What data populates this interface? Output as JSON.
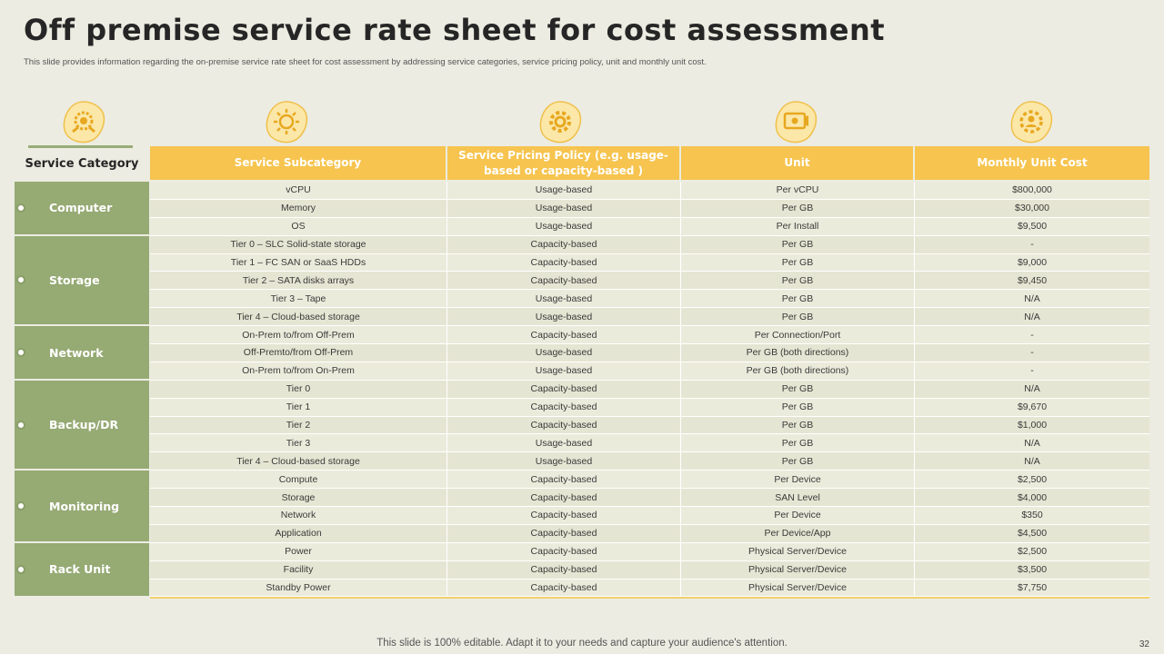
{
  "title": "Off premise service rate sheet for cost assessment",
  "subtitle": "This slide provides information regarding the on-premise service rate sheet for cost assessment by addressing service categories, service pricing policy, unit and monthly unit cost.",
  "headers": {
    "category": "Service Category",
    "subcategory": "Service Subcategory",
    "policy": "Service Pricing Policy (e.g. usage-based or capacity-based )",
    "unit": "Unit",
    "cost": "Monthly Unit Cost"
  },
  "icons": [
    "gear-hands-icon",
    "sun-gear-icon",
    "settings-gear-icon",
    "presentation-icon",
    "gear-person-icon"
  ],
  "categories": [
    {
      "name": "Computer",
      "rows": 3
    },
    {
      "name": "Storage",
      "rows": 5
    },
    {
      "name": "Network",
      "rows": 3
    },
    {
      "name": "Backup/DR",
      "rows": 5
    },
    {
      "name": "Monitoring",
      "rows": 4
    },
    {
      "name": "Rack Unit",
      "rows": 3
    }
  ],
  "rows": [
    [
      "vCPU",
      "Usage-based",
      "Per vCPU",
      "$800,000"
    ],
    [
      "Memory",
      "Usage-based",
      "Per GB",
      "$30,000"
    ],
    [
      "OS",
      "Usage-based",
      "Per Install",
      "$9,500"
    ],
    [
      "Tier 0 – SLC Solid-state storage",
      "Capacity-based",
      "Per GB",
      "-"
    ],
    [
      "Tier 1 – FC SAN or SaaS HDDs",
      "Capacity-based",
      "Per GB",
      "$9,000"
    ],
    [
      "Tier 2 – SATA disks arrays",
      "Capacity-based",
      "Per GB",
      "$9,450"
    ],
    [
      "Tier 3 – Tape",
      "Usage-based",
      "Per GB",
      "N/A"
    ],
    [
      "Tier 4 – Cloud-based storage",
      "Usage-based",
      "Per GB",
      "N/A"
    ],
    [
      "On-Prem to/from Off-Prem",
      "Capacity-based",
      "Per Connection/Port",
      "-"
    ],
    [
      "Off-Premto/from Off-Prem",
      "Usage-based",
      "Per GB (both directions)",
      "-"
    ],
    [
      "On-Prem to/from On-Prem",
      "Usage-based",
      "Per GB (both directions)",
      "-"
    ],
    [
      "Tier 0",
      "Capacity-based",
      "Per GB",
      "N/A"
    ],
    [
      "Tier 1",
      "Capacity-based",
      "Per GB",
      "$9,670"
    ],
    [
      "Tier 2",
      "Capacity-based",
      "Per GB",
      "$1,000"
    ],
    [
      "Tier 3",
      "Usage-based",
      "Per GB",
      "N/A"
    ],
    [
      "Tier 4 – Cloud-based storage",
      "Usage-based",
      "Per GB",
      "N/A"
    ],
    [
      "Compute",
      "Capacity-based",
      "Per Device",
      "$2,500"
    ],
    [
      "Storage",
      "Capacity-based",
      "SAN Level",
      "$4,000"
    ],
    [
      "Network",
      "Capacity-based",
      "Per Device",
      "$350"
    ],
    [
      "Application",
      "Capacity-based",
      "Per Device/App",
      "$4,500"
    ],
    [
      "Power",
      "Capacity-based",
      "Physical Server/Device",
      "$2,500"
    ],
    [
      "Facility",
      "Capacity-based",
      "Physical Server/Device",
      "$3,500"
    ],
    [
      "Standby Power",
      "Capacity-based",
      "Physical Server/Device",
      "$7,750"
    ]
  ],
  "footer": "This slide is 100% editable. Adapt it to your needs and capture your audience's attention.",
  "page_number": "32",
  "colors": {
    "accent": "#f6c44f",
    "category": "#96aa74",
    "background": "#ecece2"
  }
}
